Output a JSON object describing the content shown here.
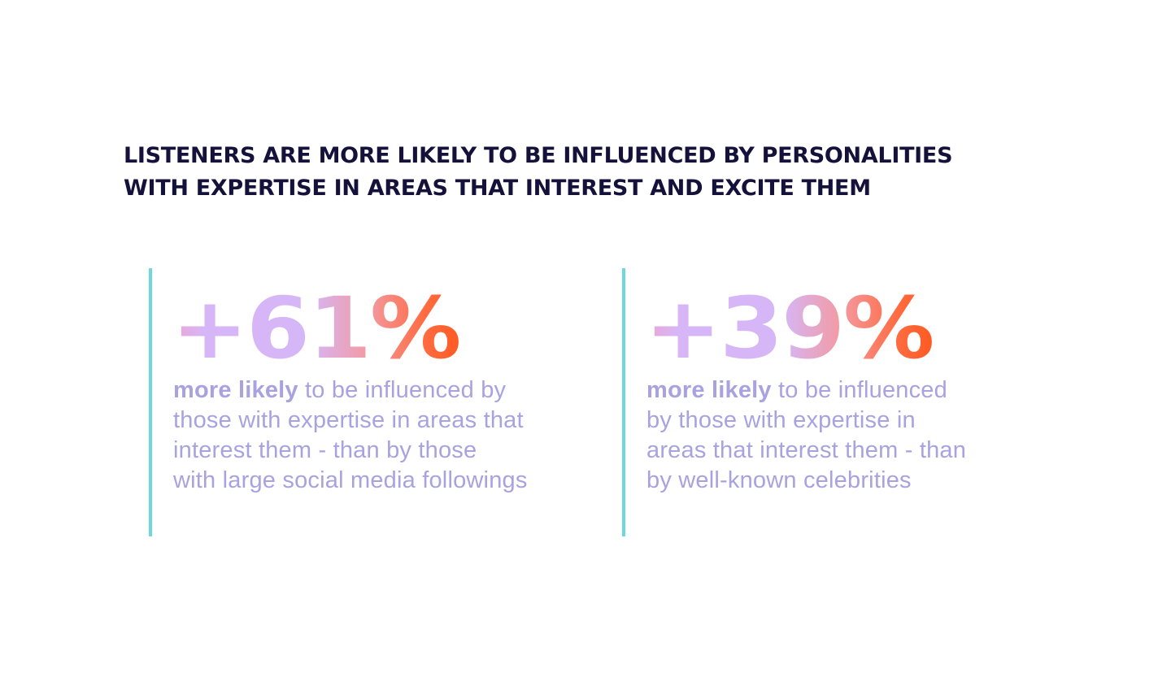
{
  "headline": {
    "line1": "LISTENERS ARE MORE LIKELY TO BE INFLUENCED BY PERSONALITIES",
    "line2": "WITH EXPERTISE IN AREAS THAT INTEREST AND EXCITE THEM"
  },
  "stats": [
    {
      "value": "+61%",
      "lead": "more likely",
      "lines": [
        " to be influenced by",
        "those with expertise in areas that",
        "interest them - than by those",
        "with large social media followings"
      ]
    },
    {
      "value": "+39%",
      "lead": "more likely",
      "lines": [
        " to be influenced",
        "by those with expertise in",
        "areas that interest them - than",
        "by well-known celebrities"
      ]
    }
  ],
  "colors": {
    "headline": "#14123a",
    "accent_bar": "#6fd8df",
    "description": "#a9a2e0",
    "value_gradient_start": "#d7b6f8",
    "value_gradient_end": "#ff5a22"
  }
}
